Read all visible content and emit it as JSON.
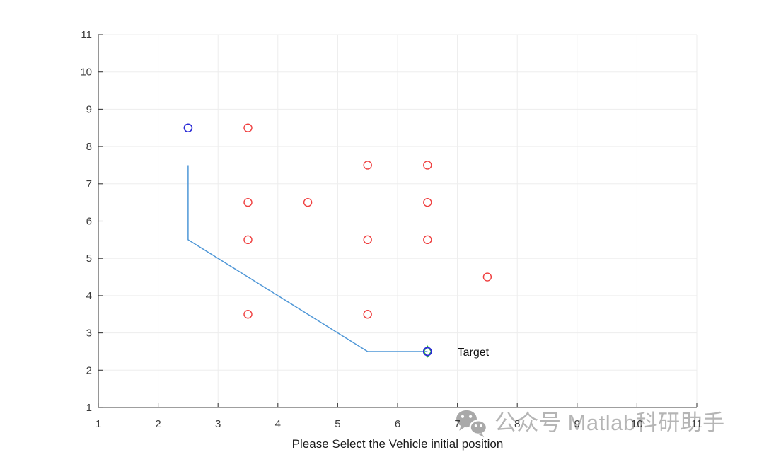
{
  "watermark": {
    "icon": "wechat-icon",
    "text": "公众号 Matlab科研助手",
    "text_color": "#b5b5b5",
    "icon_color": "#a9a9a9"
  },
  "chart_data": {
    "type": "scatter",
    "title": "",
    "xlabel": "Please Select the Vehicle initial position",
    "ylabel": "",
    "xlim": [
      1,
      11
    ],
    "ylim": [
      1,
      11
    ],
    "xticks": [
      1,
      2,
      3,
      4,
      5,
      6,
      7,
      8,
      9,
      10,
      11
    ],
    "yticks": [
      1,
      2,
      3,
      4,
      5,
      6,
      7,
      8,
      9,
      10,
      11
    ],
    "grid": true,
    "grid_color": "#ededed",
    "axis_color": "#3f3f3f",
    "tick_label_color": "#3a3a3a",
    "xlabel_color": "#1a1a1a",
    "series": [
      {
        "name": "obstacles",
        "type": "scatter",
        "marker": "circle",
        "color": "#ef3f3f",
        "marker_size": 11,
        "stroke_width": 1.4,
        "points": [
          [
            3.5,
            8.5
          ],
          [
            5.5,
            7.5
          ],
          [
            6.5,
            7.5
          ],
          [
            3.5,
            6.5
          ],
          [
            4.5,
            6.5
          ],
          [
            6.5,
            6.5
          ],
          [
            3.5,
            5.5
          ],
          [
            5.5,
            5.5
          ],
          [
            6.5,
            5.5
          ],
          [
            7.5,
            4.5
          ],
          [
            3.5,
            3.5
          ],
          [
            5.5,
            3.5
          ]
        ]
      },
      {
        "name": "planned-path",
        "type": "line",
        "color": "#4f97d7",
        "stroke_width": 1.5,
        "points": [
          [
            2.5,
            7.5
          ],
          [
            2.5,
            5.5
          ],
          [
            5.5,
            2.5
          ],
          [
            6.5,
            2.5
          ]
        ]
      },
      {
        "name": "vehicle-start",
        "type": "scatter",
        "marker": "circle",
        "color": "#2a2ad6",
        "marker_size": 11,
        "stroke_width": 1.6,
        "points": [
          [
            2.5,
            8.5
          ]
        ]
      },
      {
        "name": "target-diamond",
        "type": "scatter",
        "marker": "diamond",
        "color": "#2bc42b",
        "marker_size": 15,
        "stroke_width": 1.5,
        "points": [
          [
            6.5,
            2.5
          ]
        ]
      },
      {
        "name": "target-marker",
        "type": "scatter",
        "marker": "circle",
        "color": "#2a2ad6",
        "marker_size": 11,
        "stroke_width": 1.8,
        "points": [
          [
            6.5,
            2.5
          ]
        ]
      }
    ],
    "annotations": [
      {
        "text": "Target",
        "x": 7.0,
        "y": 2.5,
        "color": "#111111"
      }
    ]
  }
}
